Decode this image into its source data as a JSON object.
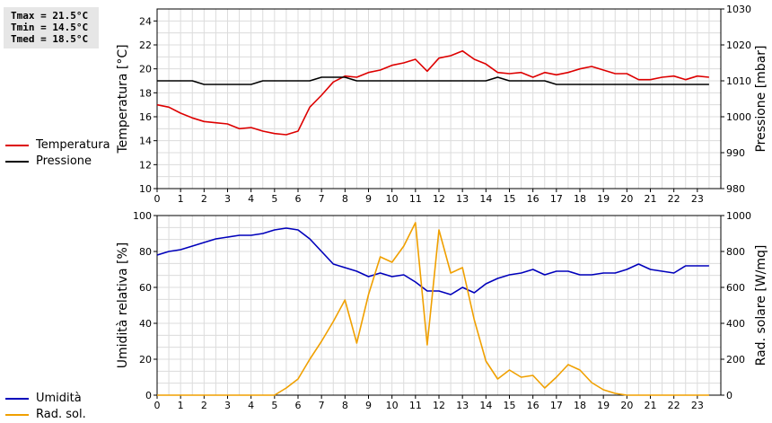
{
  "stats": {
    "tmax": "Tmax = 21.5°C",
    "tmin": "Tmin = 14.5°C",
    "tmed": "Tmed = 18.5°C"
  },
  "legend_top": [
    {
      "label": "Temperatura",
      "color": "#dd0000"
    },
    {
      "label": "Pressione",
      "color": "#000000"
    }
  ],
  "legend_bottom": [
    {
      "label": "Umidità",
      "color": "#0000bb"
    },
    {
      "label": "Rad. sol.",
      "color": "#f0a000"
    }
  ],
  "chart_data": [
    {
      "type": "line",
      "ylabel_left": "Temperatura [°C]",
      "ylabel_right": "Pressione [mbar]",
      "grid": true,
      "xlim": [
        0,
        24
      ],
      "x_ticks": [
        0,
        1,
        2,
        3,
        4,
        5,
        6,
        7,
        8,
        9,
        10,
        11,
        12,
        13,
        14,
        15,
        16,
        17,
        18,
        19,
        20,
        21,
        22,
        23
      ],
      "ylim_left": [
        10,
        25
      ],
      "yticks_left": [
        10,
        12,
        14,
        16,
        18,
        20,
        22,
        24
      ],
      "ylim_right": [
        980,
        1030
      ],
      "yticks_right": [
        980,
        990,
        1000,
        1010,
        1020,
        1030
      ],
      "series": [
        {
          "name": "Temperatura",
          "axis": "left",
          "color": "#dd0000",
          "x": [
            0,
            0.5,
            1,
            1.5,
            2,
            2.5,
            3,
            3.5,
            4,
            4.5,
            5,
            5.5,
            6,
            6.5,
            7,
            7.5,
            8,
            8.5,
            9,
            9.5,
            10,
            10.5,
            11,
            11.5,
            12,
            12.5,
            13,
            13.5,
            14,
            14.5,
            15,
            15.5,
            16,
            16.5,
            17,
            17.5,
            18,
            18.5,
            19,
            19.5,
            20,
            20.5,
            21,
            21.5,
            22,
            22.5,
            23,
            23.5
          ],
          "y": [
            17,
            16.8,
            16.3,
            15.9,
            15.6,
            15.5,
            15.4,
            15,
            15.1,
            14.8,
            14.6,
            14.5,
            14.8,
            16.8,
            17.8,
            18.9,
            19.4,
            19.3,
            19.7,
            19.9,
            20.3,
            20.5,
            20.8,
            19.8,
            20.9,
            21.1,
            21.5,
            20.8,
            20.4,
            19.7,
            19.6,
            19.7,
            19.3,
            19.7,
            19.5,
            19.7,
            20,
            20.2,
            19.9,
            19.6,
            19.6,
            19.1,
            19.1,
            19.3,
            19.4,
            19.1,
            19.4,
            19.3
          ]
        },
        {
          "name": "Pressione",
          "axis": "right",
          "color": "#000000",
          "x": [
            0,
            0.5,
            1,
            1.5,
            2,
            2.5,
            3,
            3.5,
            4,
            4.5,
            5,
            5.5,
            6,
            6.5,
            7,
            7.5,
            8,
            8.5,
            9,
            9.5,
            10,
            10.5,
            11,
            11.5,
            12,
            12.5,
            13,
            13.5,
            14,
            14.5,
            15,
            15.5,
            16,
            16.5,
            17,
            17.5,
            18,
            18.5,
            19,
            19.5,
            20,
            20.5,
            21,
            21.5,
            22,
            22.5,
            23,
            23.5
          ],
          "y": [
            1010,
            1010,
            1010,
            1010,
            1009,
            1009,
            1009,
            1009,
            1009,
            1010,
            1010,
            1010,
            1010,
            1010,
            1011,
            1011,
            1011,
            1010,
            1010,
            1010,
            1010,
            1010,
            1010,
            1010,
            1010,
            1010,
            1010,
            1010,
            1010,
            1011,
            1010,
            1010,
            1010,
            1010,
            1009,
            1009,
            1009,
            1009,
            1009,
            1009,
            1009,
            1009,
            1009,
            1009,
            1009,
            1009,
            1009,
            1009
          ]
        }
      ]
    },
    {
      "type": "line",
      "ylabel_left": "Umidità relativa [%]",
      "ylabel_right": "Rad. solare [W/mq]",
      "grid": true,
      "xlim": [
        0,
        24
      ],
      "x_ticks": [
        0,
        1,
        2,
        3,
        4,
        5,
        6,
        7,
        8,
        9,
        10,
        11,
        12,
        13,
        14,
        15,
        16,
        17,
        18,
        19,
        20,
        21,
        22,
        23
      ],
      "ylim_left": [
        0,
        100
      ],
      "yticks_left": [
        0,
        20,
        40,
        60,
        80,
        100
      ],
      "ylim_right": [
        0,
        1000
      ],
      "yticks_right": [
        0,
        200,
        400,
        600,
        800,
        1000
      ],
      "series": [
        {
          "name": "Umidità",
          "axis": "left",
          "color": "#0000bb",
          "x": [
            0,
            0.5,
            1,
            1.5,
            2,
            2.5,
            3,
            3.5,
            4,
            4.5,
            5,
            5.5,
            6,
            6.5,
            7,
            7.5,
            8,
            8.5,
            9,
            9.5,
            10,
            10.5,
            11,
            11.5,
            12,
            12.5,
            13,
            13.5,
            14,
            14.5,
            15,
            15.5,
            16,
            16.5,
            17,
            17.5,
            18,
            18.5,
            19,
            19.5,
            20,
            20.5,
            21,
            21.5,
            22,
            22.5,
            23,
            23.5
          ],
          "y": [
            78,
            80,
            81,
            83,
            85,
            87,
            88,
            89,
            89,
            90,
            92,
            93,
            92,
            87,
            80,
            73,
            71,
            69,
            66,
            68,
            66,
            67,
            63,
            58,
            58,
            56,
            60,
            57,
            62,
            65,
            67,
            68,
            70,
            67,
            69,
            69,
            67,
            67,
            68,
            68,
            70,
            73,
            70,
            69,
            68,
            72,
            72,
            72
          ]
        },
        {
          "name": "Rad. sol.",
          "axis": "right",
          "color": "#f0a000",
          "x": [
            0,
            0.5,
            1,
            1.5,
            2,
            2.5,
            3,
            3.5,
            4,
            4.5,
            5,
            5.5,
            6,
            6.5,
            7,
            7.5,
            8,
            8.5,
            9,
            9.5,
            10,
            10.5,
            11,
            11.5,
            12,
            12.5,
            13,
            13.5,
            14,
            14.5,
            15,
            15.5,
            16,
            16.5,
            17,
            17.5,
            18,
            18.5,
            19,
            19.5,
            20,
            20.5,
            21,
            21.5,
            22,
            22.5,
            23,
            23.5
          ],
          "y": [
            0,
            0,
            0,
            0,
            0,
            0,
            0,
            0,
            0,
            0,
            0,
            40,
            90,
            200,
            300,
            410,
            530,
            290,
            560,
            770,
            740,
            830,
            960,
            280,
            920,
            680,
            710,
            420,
            190,
            90,
            140,
            100,
            110,
            40,
            100,
            170,
            140,
            70,
            30,
            10,
            0,
            0,
            0,
            0,
            0,
            0,
            0,
            0
          ]
        }
      ]
    }
  ]
}
